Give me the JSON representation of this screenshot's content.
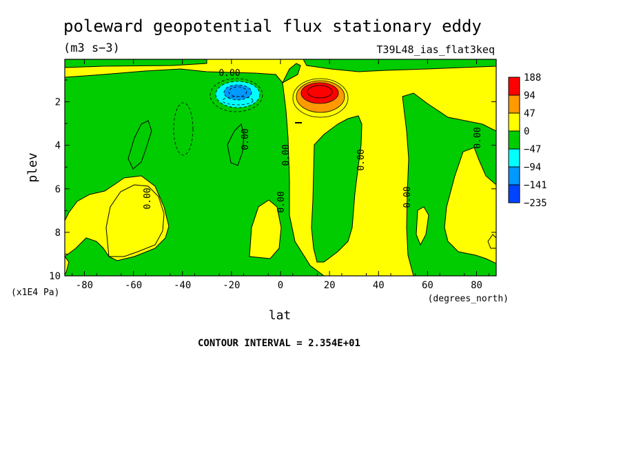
{
  "chart_data": {
    "type": "contour",
    "title": "poleward geopotential flux stationary eddy",
    "units": "(m3 s−3)",
    "run_label": "T39L48_ias_flat3keq",
    "xlabel": "lat",
    "xunits": "(degrees_north)",
    "ylabel": "plev",
    "yunits": "(x1E4 Pa)",
    "xlim": [
      -88,
      88
    ],
    "ylim": [
      0.05,
      10
    ],
    "y_inverted": true,
    "xticks": [
      -80,
      -60,
      -40,
      -20,
      0,
      20,
      40,
      60,
      80
    ],
    "xtick_labels": [
      "-80",
      "-60",
      "-40",
      "-20",
      "0",
      "20",
      "40",
      "60",
      "80"
    ],
    "yticks": [
      2,
      4,
      6,
      8,
      10
    ],
    "ytick_labels": [
      "2",
      "4",
      "6",
      "8",
      "10"
    ],
    "contour_interval": "CONTOUR INTERVAL = 2.354E+01",
    "zero_contour_label": "0.00",
    "colorbar": {
      "levels": [
        "188",
        "94",
        "47",
        "0",
        "−47",
        "−94",
        "−141",
        "−235"
      ],
      "colors": [
        "#ff0000",
        "#ff9900",
        "#ffff00",
        "#00cc00",
        "#00ffff",
        "#0099ff",
        "#0044ff"
      ]
    },
    "features": [
      {
        "kind": "maximum",
        "lat": 17,
        "plev": 1.6,
        "band": "188"
      },
      {
        "kind": "minimum",
        "lat": -17,
        "plev": 1.7,
        "band": "-141"
      }
    ]
  }
}
